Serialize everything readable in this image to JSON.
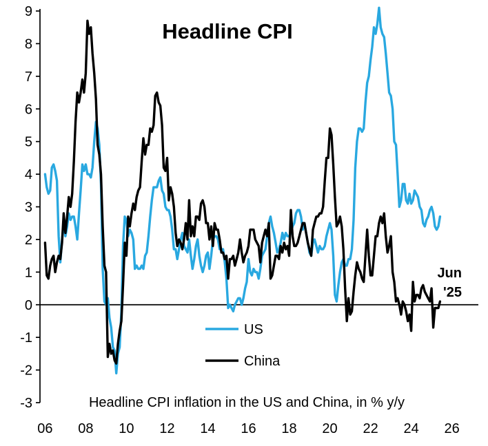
{
  "chart": {
    "title": "Headline CPI",
    "caption": "Headline CPI inflation in the US and China, in % y/y",
    "annotation": {
      "line1": "Jun",
      "line2": "'25"
    }
  },
  "chart_data": {
    "type": "line",
    "title": "Headline CPI",
    "subtitle": "Headline CPI inflation in the US and China, in % y/y",
    "frequency": "monthly",
    "x_start_year": 2006,
    "x_end_label": "Jun '25",
    "ylim": [
      -3,
      9
    ],
    "xlim": [
      2005.75,
      2027.3
    ],
    "grid": false,
    "legend_position": "inside-lower-center",
    "y_ticks": [
      9,
      8,
      7,
      6,
      5,
      4,
      3,
      2,
      1,
      0,
      -1,
      -2,
      -3
    ],
    "x_tick_values": [
      2006,
      2008,
      2010,
      2012,
      2014,
      2016,
      2018,
      2020,
      2022,
      2024,
      2026
    ],
    "x_tick_labels": [
      "06",
      "08",
      "10",
      "12",
      "14",
      "16",
      "18",
      "20",
      "22",
      "24",
      "26"
    ],
    "series": [
      {
        "name": "US",
        "color": "#29A8E0",
        "values": [
          4.0,
          3.6,
          3.4,
          3.5,
          4.2,
          4.3,
          4.1,
          3.8,
          2.1,
          1.3,
          2.0,
          2.5,
          2.1,
          2.4,
          2.8,
          2.6,
          2.7,
          2.7,
          2.4,
          2.0,
          2.8,
          3.5,
          4.3,
          4.1,
          4.3,
          4.0,
          4.0,
          3.9,
          4.2,
          5.0,
          5.6,
          5.4,
          4.9,
          3.7,
          1.1,
          0.1,
          0.0,
          0.2,
          -0.4,
          -0.7,
          -1.3,
          -1.4,
          -2.1,
          -1.5,
          -1.3,
          -0.2,
          1.8,
          2.7,
          2.6,
          2.1,
          2.3,
          2.2,
          2.0,
          1.1,
          1.2,
          1.1,
          1.1,
          1.2,
          1.1,
          1.5,
          1.6,
          2.1,
          2.7,
          3.2,
          3.6,
          3.6,
          3.6,
          3.8,
          3.9,
          3.5,
          3.4,
          3.0,
          2.9,
          2.9,
          2.7,
          2.3,
          1.7,
          1.7,
          1.4,
          1.7,
          2.0,
          2.2,
          1.8,
          1.7,
          1.6,
          2.0,
          1.5,
          1.1,
          1.4,
          1.8,
          2.0,
          1.5,
          1.2,
          1.0,
          1.2,
          1.5,
          1.6,
          1.1,
          1.5,
          2.0,
          2.1,
          2.1,
          2.0,
          1.7,
          1.7,
          1.7,
          1.3,
          0.8,
          -0.1,
          0.0,
          -0.1,
          -0.2,
          0.0,
          0.1,
          0.2,
          0.2,
          0.0,
          0.2,
          0.5,
          0.7,
          1.4,
          1.0,
          0.9,
          1.1,
          1.0,
          1.0,
          0.8,
          1.1,
          1.5,
          1.6,
          1.7,
          2.1,
          2.5,
          2.7,
          2.4,
          2.2,
          1.9,
          1.6,
          1.7,
          1.9,
          2.2,
          2.0,
          2.2,
          2.1,
          2.1,
          2.2,
          2.4,
          2.5,
          2.8,
          2.9,
          2.9,
          2.7,
          2.3,
          2.5,
          2.2,
          1.9,
          1.6,
          1.5,
          1.9,
          2.0,
          1.8,
          1.6,
          1.8,
          1.7,
          1.7,
          1.8,
          2.1,
          2.3,
          2.5,
          2.3,
          1.5,
          0.3,
          0.1,
          0.6,
          1.0,
          1.3,
          1.4,
          1.2,
          1.2,
          1.4,
          1.4,
          1.7,
          2.6,
          4.2,
          5.0,
          5.4,
          5.4,
          5.3,
          5.4,
          6.2,
          6.8,
          7.0,
          7.5,
          7.9,
          8.5,
          8.3,
          8.6,
          9.1,
          8.5,
          8.3,
          8.2,
          7.7,
          7.1,
          6.5,
          6.4,
          6.0,
          5.0,
          4.9,
          4.0,
          3.0,
          3.2,
          3.7,
          3.7,
          3.2,
          3.1,
          3.4,
          3.1,
          3.2,
          3.5,
          3.4,
          3.3,
          3.0,
          2.9,
          2.5,
          2.4,
          2.6,
          2.7,
          2.9,
          3.0,
          2.8,
          2.4,
          2.3,
          2.4,
          2.7
        ]
      },
      {
        "name": "China",
        "color": "#000000",
        "values": [
          1.9,
          0.9,
          0.8,
          1.2,
          1.4,
          1.5,
          1.0,
          1.3,
          1.5,
          1.4,
          1.9,
          2.8,
          2.2,
          2.7,
          3.3,
          3.0,
          3.4,
          4.4,
          5.6,
          6.5,
          6.2,
          6.5,
          6.9,
          6.5,
          7.1,
          8.7,
          8.3,
          8.5,
          7.7,
          7.1,
          6.3,
          4.9,
          4.6,
          4.0,
          2.4,
          1.2,
          1.0,
          -1.6,
          -1.2,
          -1.5,
          -1.4,
          -1.7,
          -1.8,
          -1.2,
          -0.8,
          -0.5,
          0.6,
          1.9,
          1.5,
          2.7,
          2.4,
          2.8,
          3.1,
          2.9,
          3.3,
          3.5,
          3.6,
          4.4,
          5.1,
          4.6,
          4.9,
          4.9,
          5.4,
          5.3,
          5.5,
          6.4,
          6.5,
          6.2,
          6.1,
          5.5,
          4.2,
          4.1,
          4.5,
          3.2,
          3.6,
          3.4,
          3.0,
          2.2,
          1.8,
          2.0,
          1.9,
          1.7,
          2.0,
          2.5,
          2.0,
          3.2,
          2.1,
          2.4,
          2.1,
          2.7,
          2.7,
          2.6,
          3.1,
          3.2,
          3.0,
          2.5,
          2.5,
          2.0,
          2.4,
          1.8,
          2.5,
          2.3,
          2.3,
          2.0,
          1.6,
          1.6,
          1.4,
          1.5,
          0.8,
          1.4,
          1.4,
          1.5,
          1.2,
          1.4,
          1.6,
          2.0,
          1.6,
          1.3,
          1.5,
          1.6,
          1.8,
          2.3,
          2.3,
          2.3,
          2.0,
          1.9,
          1.8,
          1.3,
          1.9,
          2.1,
          2.3,
          2.1,
          2.5,
          0.8,
          0.9,
          1.2,
          1.5,
          1.5,
          1.4,
          1.8,
          1.6,
          1.9,
          1.7,
          1.8,
          1.5,
          2.9,
          2.1,
          1.8,
          1.8,
          1.9,
          2.1,
          2.3,
          2.5,
          2.5,
          2.2,
          1.9,
          1.7,
          1.5,
          2.3,
          2.5,
          2.7,
          2.7,
          2.8,
          2.8,
          3.0,
          3.8,
          4.5,
          4.5,
          5.4,
          5.2,
          4.3,
          3.3,
          2.4,
          2.5,
          2.7,
          2.4,
          1.7,
          0.5,
          -0.5,
          0.2,
          -0.3,
          -0.2,
          0.4,
          0.9,
          1.3,
          1.1,
          1.0,
          0.8,
          0.7,
          1.5,
          2.3,
          1.5,
          0.9,
          0.9,
          1.5,
          2.1,
          2.1,
          2.5,
          2.7,
          2.5,
          2.8,
          2.1,
          1.6,
          1.8,
          2.1,
          1.0,
          0.7,
          0.1,
          0.2,
          0.0,
          -0.3,
          0.1,
          0.0,
          -0.2,
          -0.5,
          -0.3,
          -0.8,
          0.7,
          0.1,
          0.3,
          0.3,
          0.2,
          0.5,
          0.6,
          0.4,
          0.3,
          0.2,
          0.1,
          0.5,
          -0.7,
          -0.1,
          -0.1,
          -0.1,
          0.1
        ]
      }
    ]
  }
}
